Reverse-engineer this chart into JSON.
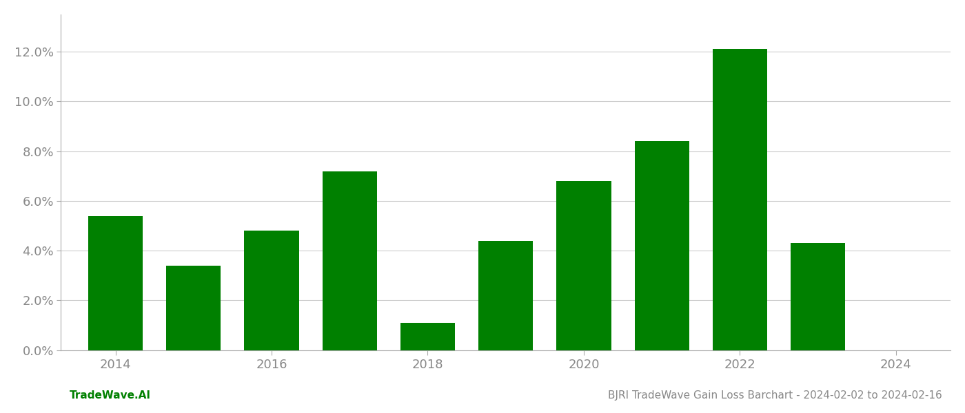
{
  "years": [
    2014,
    2015,
    2016,
    2017,
    2018,
    2019,
    2020,
    2021,
    2022,
    2023
  ],
  "values": [
    0.054,
    0.034,
    0.048,
    0.072,
    0.011,
    0.044,
    0.068,
    0.084,
    0.121,
    0.043
  ],
  "bar_color": "#008000",
  "background_color": "#ffffff",
  "grid_color": "#cccccc",
  "title": "BJRI TradeWave Gain Loss Barchart - 2024-02-02 to 2024-02-16",
  "watermark": "TradeWave.AI",
  "ylim": [
    0,
    0.135
  ],
  "yticks": [
    0.0,
    0.02,
    0.04,
    0.06,
    0.08,
    0.1,
    0.12
  ],
  "xticks": [
    2014,
    2016,
    2018,
    2020,
    2022,
    2024
  ],
  "xlim": [
    2013.3,
    2024.7
  ],
  "title_fontsize": 11,
  "watermark_fontsize": 11,
  "tick_fontsize": 13,
  "bar_width": 0.7
}
